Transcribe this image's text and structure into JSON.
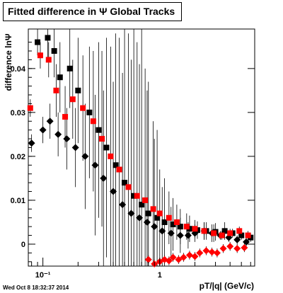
{
  "chart_data": {
    "type": "scatter",
    "title": "Fitted difference in Ψ   Global Tracks",
    "xlabel": "pT/|q| (GeV/c)",
    "ylabel": "difference lnΨ",
    "x_scale": "log",
    "xlim": [
      0.075,
      6.5
    ],
    "ylim": [
      -0.005,
      0.049
    ],
    "x_ticks": [
      {
        "value": 0.1,
        "label": "10⁻¹"
      },
      {
        "value": 1,
        "label": "1"
      }
    ],
    "y_ticks": [
      0,
      0.01,
      0.02,
      0.03,
      0.04
    ],
    "y_tick_labels": [
      "0",
      "0.01",
      "0.02",
      "0.03",
      "0.04"
    ],
    "grid": false,
    "series": [
      {
        "marker": "square",
        "color": "#000000",
        "x": [
          0.09,
          0.11,
          0.125,
          0.14,
          0.17,
          0.2,
          0.25,
          0.3,
          0.35,
          0.42,
          0.5,
          0.6,
          0.7,
          0.8,
          0.95,
          1.1,
          1.3,
          1.5,
          1.8,
          2.1,
          2.5,
          3.0,
          3.6,
          4.2,
          5.0,
          6.0
        ],
        "y": [
          0.046,
          0.047,
          0.044,
          0.038,
          0.04,
          0.035,
          0.03,
          0.026,
          0.022,
          0.018,
          0.014,
          0.011,
          0.009,
          0.007,
          0.006,
          0.005,
          0.0045,
          0.004,
          0.0035,
          0.0032,
          0.003,
          0.0028,
          0.003,
          0.0025,
          0.002,
          0.0015
        ],
        "y_err": [
          0.003,
          0.005,
          0.006,
          0.008,
          0.009,
          0.012,
          0.015,
          0.02,
          0.025,
          0.03,
          0.035,
          0.04,
          0.04,
          0.03,
          0.02,
          0.01,
          0.006,
          0.004,
          0.003,
          0.002,
          0.002,
          0.002,
          0.002,
          0.001,
          0.001,
          0.001
        ]
      },
      {
        "marker": "diamond",
        "color": "#000000",
        "x": [
          0.08,
          0.1,
          0.115,
          0.135,
          0.16,
          0.19,
          0.23,
          0.28,
          0.33,
          0.4,
          0.48,
          0.57,
          0.67,
          0.78,
          0.9,
          1.05,
          1.25,
          1.5,
          1.75,
          2.0,
          2.4,
          2.8,
          3.3,
          3.9,
          4.6,
          5.5
        ],
        "y": [
          0.023,
          0.026,
          0.028,
          0.025,
          0.024,
          0.022,
          0.02,
          0.018,
          0.015,
          0.012,
          0.009,
          0.007,
          0.006,
          0.005,
          0.004,
          0.003,
          0.0025,
          0.002,
          0.002,
          0.0025,
          0.003,
          0.0025,
          0.002,
          0.0015,
          0.001,
          0.0005
        ],
        "y_err": [
          0.002,
          0.003,
          0.004,
          0.005,
          0.007,
          0.009,
          0.012,
          0.016,
          0.02,
          0.025,
          0.03,
          0.035,
          0.035,
          0.03,
          0.02,
          0.01,
          0.006,
          0.004,
          0.003,
          0.002,
          0.002,
          0.002,
          0.001,
          0.001,
          0.001,
          0.001
        ]
      },
      {
        "marker": "square",
        "color": "#ff0000",
        "x": [
          0.078,
          0.095,
          0.112,
          0.13,
          0.155,
          0.18,
          0.22,
          0.27,
          0.32,
          0.38,
          0.45,
          0.54,
          0.64,
          0.75,
          0.88,
          1.0,
          1.2,
          1.4,
          1.7,
          2.0,
          2.4,
          2.9,
          3.4,
          4.0,
          4.8,
          5.7
        ],
        "y": [
          0.031,
          0.043,
          0.042,
          0.035,
          0.029,
          0.033,
          0.031,
          0.028,
          0.024,
          0.02,
          0.017,
          0.013,
          0.011,
          0.01,
          0.008,
          0.007,
          0.006,
          0.005,
          0.004,
          0.0035,
          0.003,
          0.0025,
          0.002,
          0.0025,
          0.003,
          0.002
        ],
        "y_err": [
          0.002,
          0.003,
          0.004,
          0.006,
          0.007,
          0.009,
          0.012,
          0.016,
          0.02,
          0.025,
          0.03,
          0.035,
          0.035,
          0.03,
          0.02,
          0.01,
          0.006,
          0.004,
          0.003,
          0.002,
          0.002,
          0.002,
          0.001,
          0.001,
          0.001,
          0.001
        ]
      },
      {
        "marker": "diamond",
        "color": "#ff0000",
        "x": [
          0.8,
          0.9,
          1.0,
          1.1,
          1.2,
          1.3,
          1.45,
          1.6,
          1.8,
          2.0,
          2.2,
          2.5,
          2.8,
          3.1,
          3.5,
          4.0,
          4.6,
          5.3
        ],
        "y": [
          -0.0035,
          -0.0045,
          -0.004,
          -0.0035,
          -0.0038,
          -0.003,
          -0.0035,
          -0.003,
          -0.0025,
          -0.0028,
          -0.002,
          -0.0015,
          -0.0018,
          -0.002,
          -0.001,
          -0.0005,
          -0.001,
          -0.0008
        ],
        "y_err": [
          0.001,
          0.001,
          0.001,
          0.001,
          0.001,
          0.001,
          0.001,
          0.001,
          0.001,
          0.001,
          0.001,
          0.001,
          0.001,
          0.001,
          0.001,
          0.001,
          0.001,
          0.001
        ]
      }
    ]
  },
  "footer": {
    "timestamp": "Wed Oct  8 18:32:37 2014"
  }
}
